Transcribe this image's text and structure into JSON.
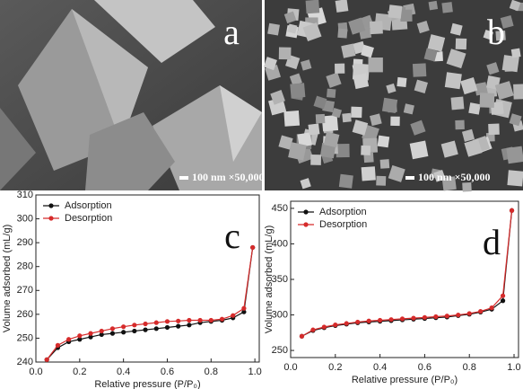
{
  "images": [
    {
      "label": "a",
      "scale": "100 nm ×50,000"
    },
    {
      "label": "b",
      "scale": "100 nm ×50,000"
    }
  ],
  "chart_data": [
    {
      "type": "line",
      "panel_label": "c",
      "xlabel": "Relative pressure (P/P₀)",
      "ylabel": "Volume adsorbed (mL/g)",
      "x": [
        0.05,
        0.1,
        0.15,
        0.2,
        0.25,
        0.3,
        0.35,
        0.4,
        0.45,
        0.5,
        0.55,
        0.6,
        0.65,
        0.7,
        0.75,
        0.8,
        0.85,
        0.9,
        0.95,
        0.99
      ],
      "series": [
        {
          "name": "Adsorption",
          "color": "#111111",
          "values": [
            241,
            246,
            248.5,
            249.5,
            250.5,
            251.5,
            252,
            252.5,
            253,
            253.5,
            254,
            254.5,
            255,
            255.5,
            256.5,
            257,
            257.5,
            258.5,
            261,
            288
          ]
        },
        {
          "name": "Desorption",
          "color": "#d62b2b",
          "values": [
            241,
            247,
            249.5,
            251,
            252,
            253,
            254,
            254.8,
            255.5,
            256,
            256.5,
            257,
            257.2,
            257.5,
            257.5,
            257.5,
            258,
            259.5,
            262.5,
            288
          ]
        }
      ],
      "xlim": [
        0,
        1.02
      ],
      "ylim": [
        240,
        310
      ],
      "xticks": [
        {
          "value": 0,
          "label": "0.0"
        },
        0.2,
        0.4,
        0.6,
        0.8,
        {
          "value": 1,
          "label": "1.0"
        }
      ],
      "yticks": [
        240,
        250,
        260,
        270,
        280,
        290,
        300,
        310
      ],
      "legend": "upper left"
    },
    {
      "type": "line",
      "panel_label": "d",
      "xlabel": "Relative pressure (P/P₀)",
      "ylabel": "Volume adsorbed (mL/g)",
      "x": [
        0.05,
        0.1,
        0.15,
        0.2,
        0.25,
        0.3,
        0.35,
        0.4,
        0.45,
        0.5,
        0.55,
        0.6,
        0.65,
        0.7,
        0.75,
        0.8,
        0.85,
        0.9,
        0.95,
        0.99
      ],
      "series": [
        {
          "name": "Adsorption",
          "color": "#111111",
          "values": [
            270,
            278,
            282,
            285,
            287,
            289,
            290,
            291,
            292,
            293,
            294,
            295,
            296,
            297,
            299,
            301,
            304,
            308,
            320,
            447
          ]
        },
        {
          "name": "Desorption",
          "color": "#d62b2b",
          "values": [
            270,
            279,
            283,
            286,
            288,
            290,
            291.5,
            292.5,
            293.5,
            294.5,
            295.5,
            296.5,
            297.5,
            298.5,
            300,
            302,
            305,
            310,
            327,
            447
          ]
        }
      ],
      "xlim": [
        0,
        1.02
      ],
      "ylim": [
        240,
        460
      ],
      "xticks": [
        {
          "value": 0,
          "label": "0.0"
        },
        0.2,
        0.4,
        0.6,
        0.8,
        {
          "value": 1,
          "label": "1.0"
        }
      ],
      "yticks": [
        250,
        300,
        350,
        400,
        450
      ],
      "legend": "upper left"
    }
  ]
}
